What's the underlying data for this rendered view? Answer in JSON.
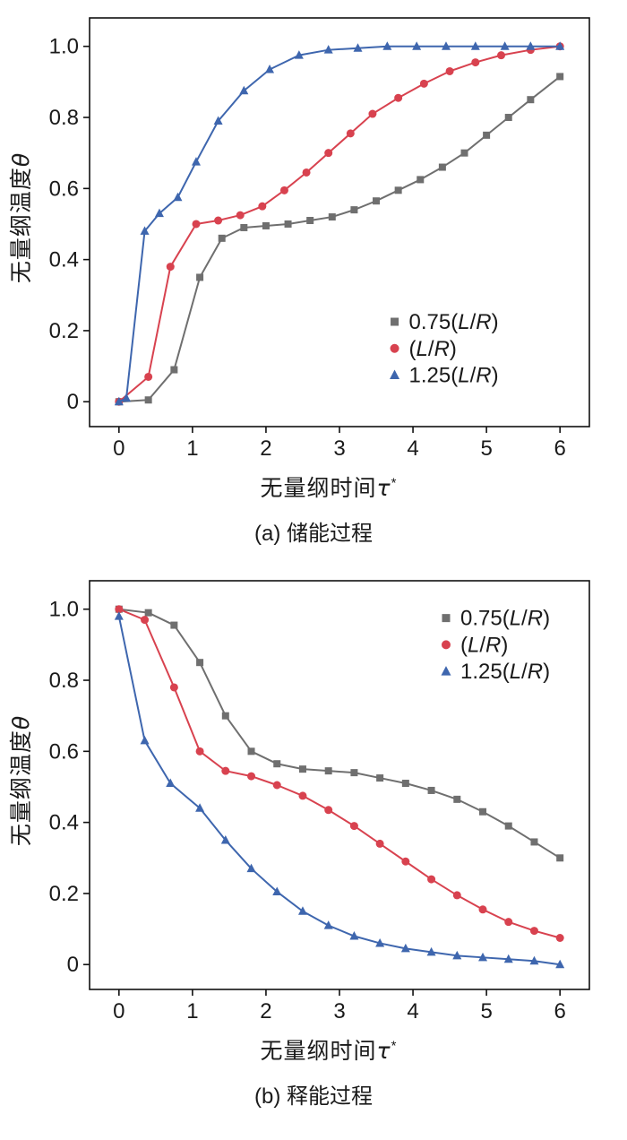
{
  "chart_data": [
    {
      "type": "line",
      "caption": "(a) 储能过程",
      "xlabel": {
        "text": "无量纲时间",
        "sym": "τ",
        "sup": "*"
      },
      "ylabel": {
        "text": "无量纲温度",
        "sym": "θ"
      },
      "xlim": [
        -0.4,
        6.4
      ],
      "ylim": [
        -0.07,
        1.08
      ],
      "xticks": [
        0,
        1,
        2,
        3,
        4,
        5,
        6
      ],
      "xtick_labels": [
        "0",
        "1",
        "2",
        "3",
        "4",
        "5",
        "6"
      ],
      "yticks": [
        0,
        0.2,
        0.4,
        0.6,
        0.8,
        1.0
      ],
      "ytick_labels": [
        "0",
        "0.2",
        "0.4",
        "0.6",
        "0.8",
        "1.0"
      ],
      "grid": false,
      "legend_position": "lower-right",
      "series": [
        {
          "name": "0.75(L/R)",
          "color": "#6f6f6f",
          "marker": "square",
          "x": [
            0,
            0.4,
            0.75,
            1.1,
            1.4,
            1.7,
            2.0,
            2.3,
            2.6,
            2.9,
            3.2,
            3.5,
            3.8,
            4.1,
            4.4,
            4.7,
            5.0,
            5.3,
            5.6,
            6.0
          ],
          "y": [
            0,
            0.005,
            0.09,
            0.35,
            0.46,
            0.49,
            0.495,
            0.5,
            0.51,
            0.52,
            0.54,
            0.565,
            0.595,
            0.625,
            0.66,
            0.7,
            0.75,
            0.8,
            0.85,
            0.915
          ]
        },
        {
          "name": "(L/R)",
          "color": "#d8424f",
          "marker": "circle",
          "x": [
            0,
            0.4,
            0.7,
            1.05,
            1.35,
            1.65,
            1.95,
            2.25,
            2.55,
            2.85,
            3.15,
            3.45,
            3.8,
            4.15,
            4.5,
            4.85,
            5.2,
            5.6,
            6.0
          ],
          "y": [
            0,
            0.07,
            0.38,
            0.5,
            0.51,
            0.525,
            0.55,
            0.595,
            0.645,
            0.7,
            0.755,
            0.81,
            0.855,
            0.895,
            0.93,
            0.955,
            0.975,
            0.99,
            1.0
          ]
        },
        {
          "name": "1.25(L/R)",
          "color": "#3e66ae",
          "marker": "triangle",
          "x": [
            0,
            0.1,
            0.35,
            0.55,
            0.8,
            1.05,
            1.35,
            1.7,
            2.05,
            2.45,
            2.85,
            3.25,
            3.65,
            4.05,
            4.45,
            4.85,
            5.25,
            5.6,
            6.0
          ],
          "y": [
            0,
            0.01,
            0.48,
            0.53,
            0.575,
            0.675,
            0.79,
            0.875,
            0.935,
            0.975,
            0.99,
            0.995,
            1.0,
            1.0,
            1.0,
            1.0,
            1.0,
            1.0,
            1.0
          ]
        }
      ]
    },
    {
      "type": "line",
      "caption": "(b) 释能过程",
      "xlabel": {
        "text": "无量纲时间",
        "sym": "τ",
        "sup": "*"
      },
      "ylabel": {
        "text": "无量纲温度",
        "sym": "θ"
      },
      "xlim": [
        -0.4,
        6.4
      ],
      "ylim": [
        -0.07,
        1.08
      ],
      "xticks": [
        0,
        1,
        2,
        3,
        4,
        5,
        6
      ],
      "xtick_labels": [
        "0",
        "1",
        "2",
        "3",
        "4",
        "5",
        "6"
      ],
      "yticks": [
        0,
        0.2,
        0.4,
        0.6,
        0.8,
        1.0
      ],
      "ytick_labels": [
        "0",
        "0.2",
        "0.4",
        "0.6",
        "0.8",
        "1.0"
      ],
      "grid": false,
      "legend_position": "upper-right",
      "series": [
        {
          "name": "0.75(L/R)",
          "color": "#6f6f6f",
          "marker": "square",
          "x": [
            0,
            0.4,
            0.75,
            1.1,
            1.45,
            1.8,
            2.15,
            2.5,
            2.85,
            3.2,
            3.55,
            3.9,
            4.25,
            4.6,
            4.95,
            5.3,
            5.65,
            6.0
          ],
          "y": [
            1.0,
            0.99,
            0.955,
            0.85,
            0.7,
            0.6,
            0.565,
            0.55,
            0.545,
            0.54,
            0.525,
            0.51,
            0.49,
            0.465,
            0.43,
            0.39,
            0.345,
            0.3
          ]
        },
        {
          "name": "(L/R)",
          "color": "#d8424f",
          "marker": "circle",
          "x": [
            0,
            0.35,
            0.75,
            1.1,
            1.45,
            1.8,
            2.15,
            2.5,
            2.85,
            3.2,
            3.55,
            3.9,
            4.25,
            4.6,
            4.95,
            5.3,
            5.65,
            6.0
          ],
          "y": [
            1.0,
            0.97,
            0.78,
            0.6,
            0.545,
            0.53,
            0.505,
            0.475,
            0.435,
            0.39,
            0.34,
            0.29,
            0.24,
            0.195,
            0.155,
            0.12,
            0.095,
            0.075
          ]
        },
        {
          "name": "1.25(L/R)",
          "color": "#3e66ae",
          "marker": "triangle",
          "x": [
            0,
            0.35,
            0.7,
            1.1,
            1.45,
            1.8,
            2.15,
            2.5,
            2.85,
            3.2,
            3.55,
            3.9,
            4.25,
            4.6,
            4.95,
            5.3,
            5.65,
            6.0
          ],
          "y": [
            0.98,
            0.63,
            0.51,
            0.44,
            0.35,
            0.27,
            0.205,
            0.15,
            0.11,
            0.08,
            0.06,
            0.045,
            0.035,
            0.025,
            0.02,
            0.015,
            0.01,
            0.0
          ]
        }
      ]
    }
  ]
}
